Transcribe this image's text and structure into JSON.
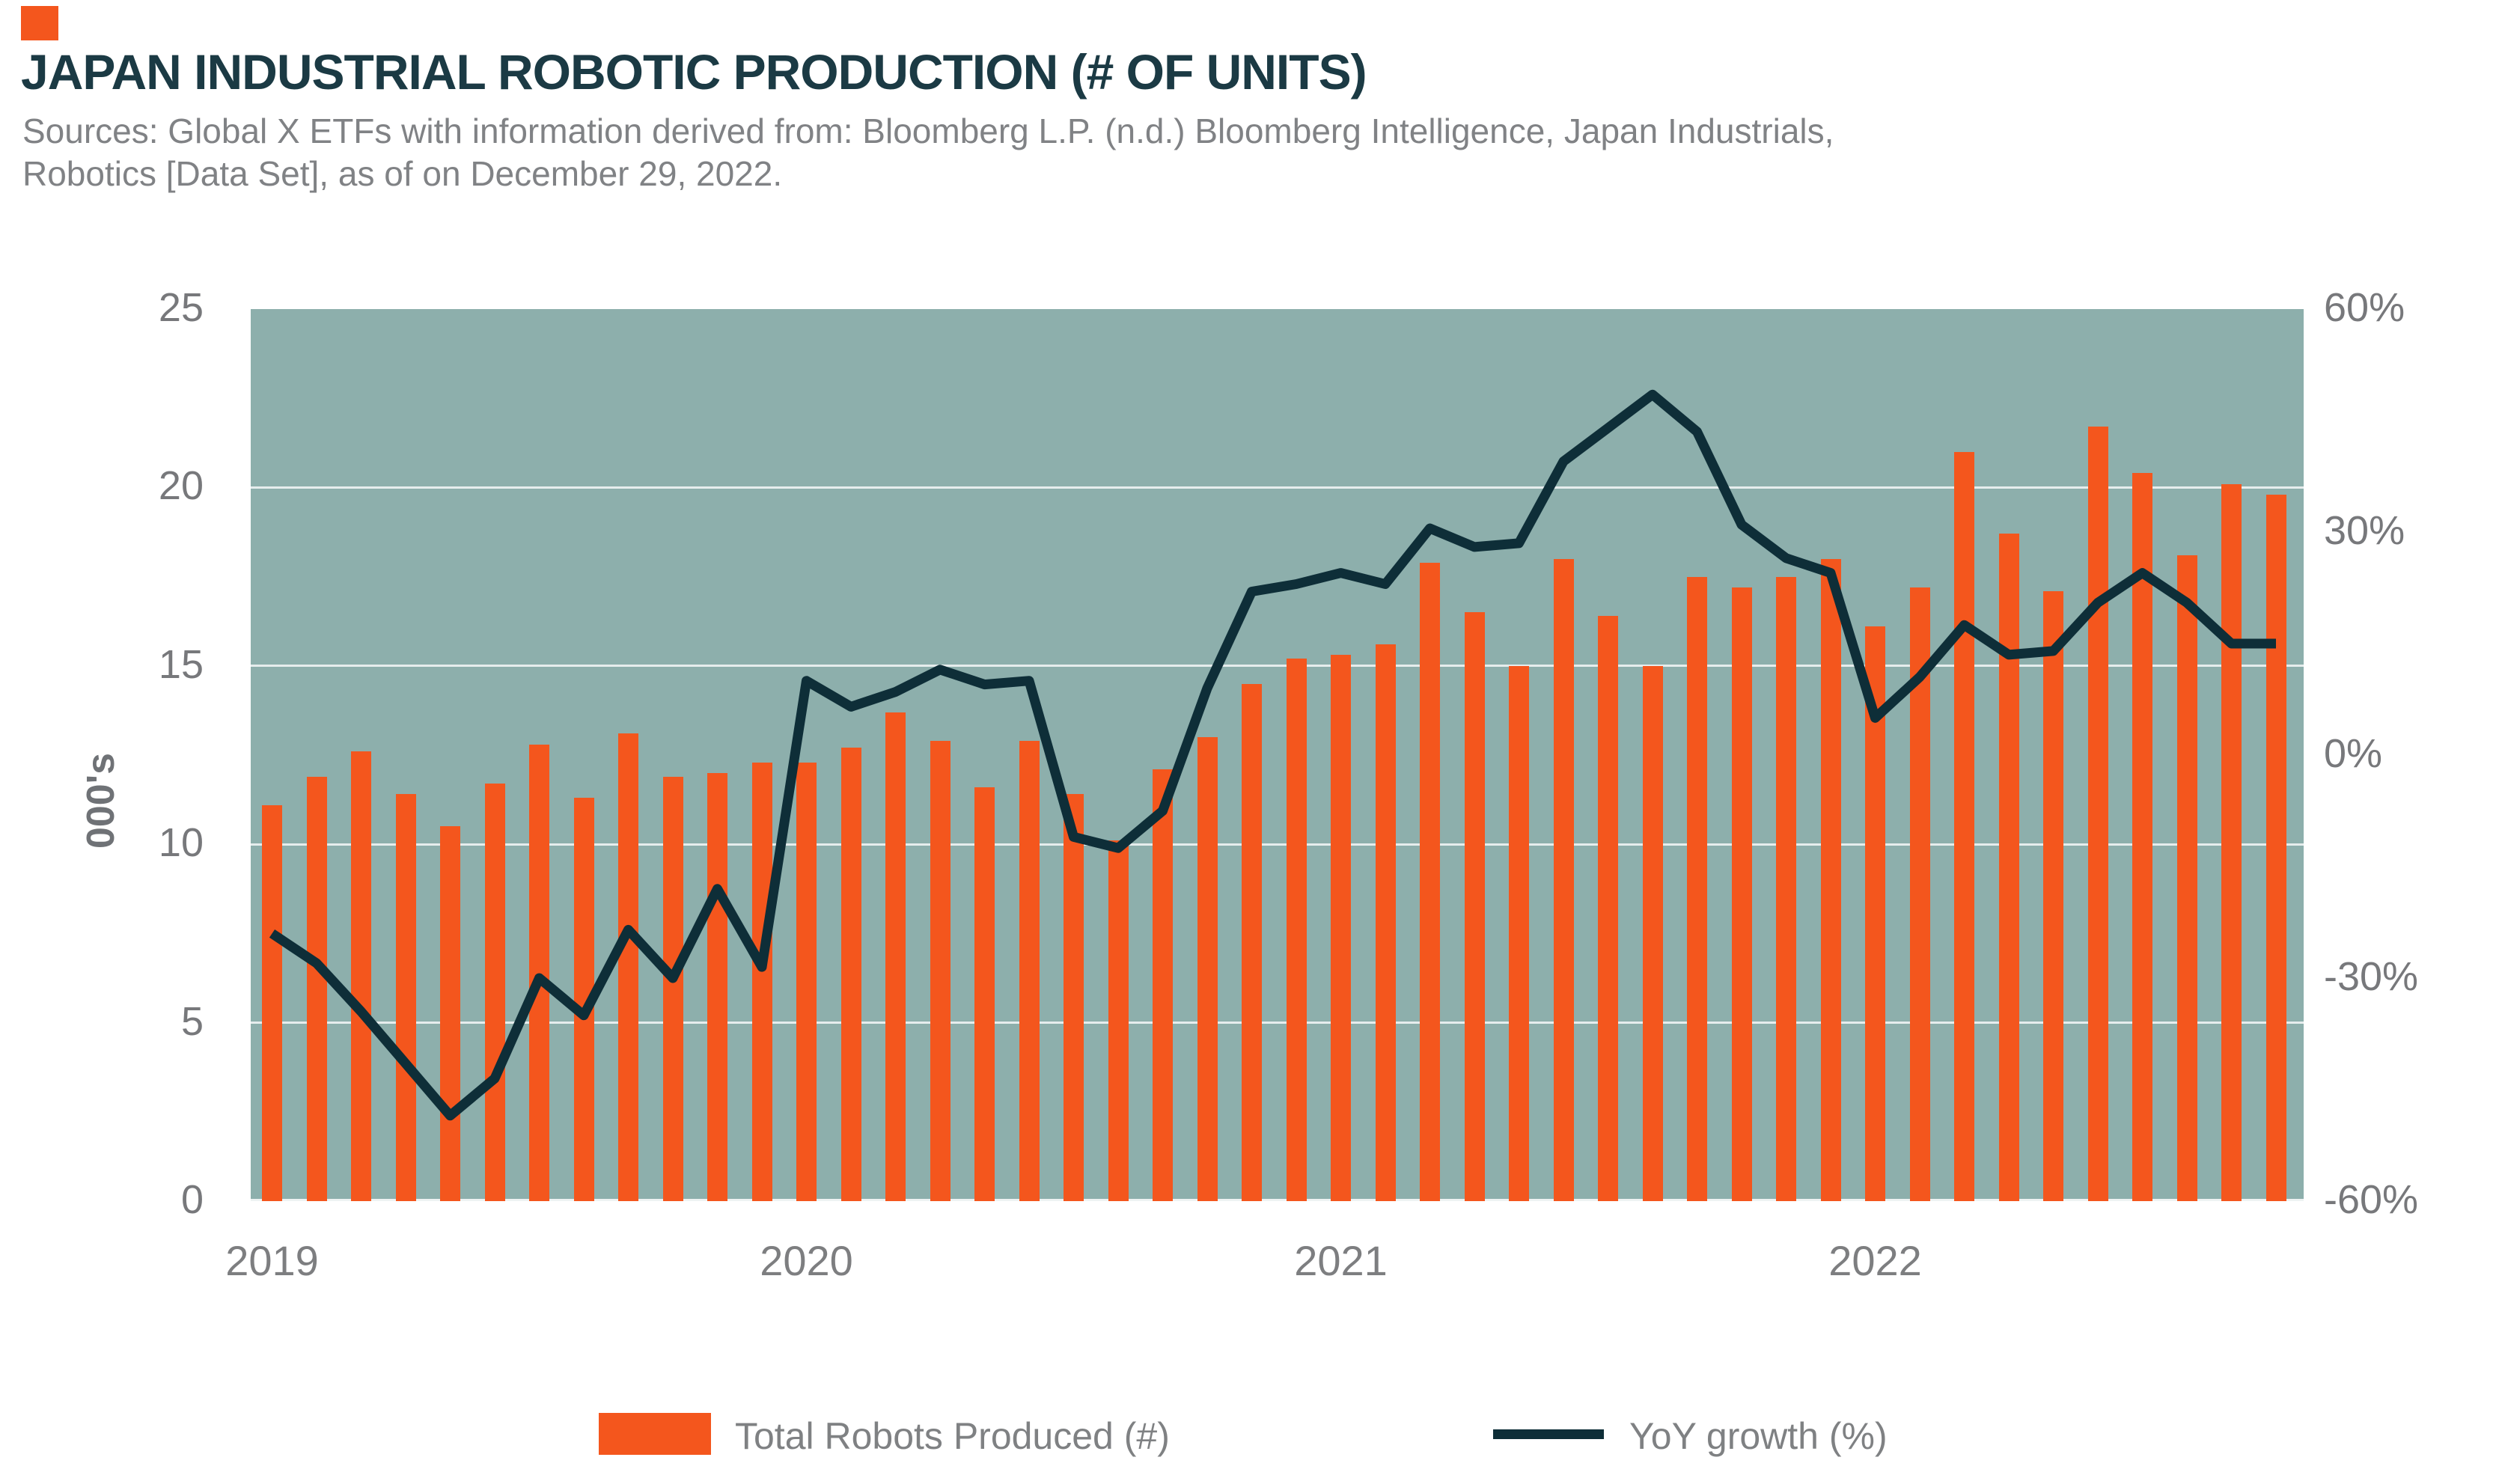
{
  "header": {
    "accent_color": "#F4561D",
    "title": "JAPAN INDUSTRIAL ROBOTIC PRODUCTION (# OF UNITS)",
    "source_line1": "Sources: Global X ETFs with information derived from: Bloomberg L.P. (n.d.) Bloomberg Intelligence, Japan Industrials,",
    "source_line2": "Robotics [Data Set], as of on December 29, 2022."
  },
  "chart_data": {
    "type": "bar",
    "subtype": "bar+line combo, dual axis",
    "title": "JAPAN INDUSTRIAL ROBOTIC PRODUCTION (# OF UNITS)",
    "plot_bg": "#8DAFAC",
    "grid": "on",
    "categories": [
      "Jan 2019",
      "Feb 2019",
      "Mar 2019",
      "Apr 2019",
      "May 2019",
      "Jun 2019",
      "Jul 2019",
      "Aug 2019",
      "Sep 2019",
      "Oct 2019",
      "Nov 2019",
      "Dec 2019",
      "Jan 2020",
      "Feb 2020",
      "Mar 2020",
      "Apr 2020",
      "May 2020",
      "Jun 2020",
      "Jul 2020",
      "Aug 2020",
      "Sep 2020",
      "Oct 2020",
      "Nov 2020",
      "Dec 2020",
      "Jan 2021",
      "Feb 2021",
      "Mar 2021",
      "Apr 2021",
      "May 2021",
      "Jun 2021",
      "Jul 2021",
      "Aug 2021",
      "Sep 2021",
      "Oct 2021",
      "Nov 2021",
      "Dec 2021",
      "Jan 2022",
      "Feb 2022",
      "Mar 2022",
      "Apr 2022",
      "May 2022",
      "Jun 2022",
      "Jul 2022",
      "Aug 2022",
      "Sep 2022",
      "Oct 2022"
    ],
    "series": [
      {
        "name": "Total Robots Produced (#)",
        "type": "bar",
        "axis": "left",
        "color": "#F4561D",
        "values": [
          11.1,
          11.9,
          12.6,
          11.4,
          10.5,
          11.7,
          12.8,
          11.3,
          13.1,
          11.9,
          12.0,
          12.3,
          12.3,
          12.7,
          13.7,
          12.9,
          11.6,
          12.9,
          11.4,
          10.1,
          12.1,
          13.0,
          14.5,
          15.2,
          15.3,
          15.6,
          17.9,
          16.5,
          15.0,
          18.0,
          16.4,
          15.0,
          17.5,
          17.2,
          17.5,
          18.0,
          16.1,
          17.2,
          21.0,
          18.7,
          17.1,
          21.7,
          20.4,
          18.1,
          20.1,
          19.8
        ]
      },
      {
        "name": "YoY growth (%)",
        "type": "line",
        "axis": "right",
        "color": "#0E2E38",
        "values": [
          -24,
          -28,
          -34.5,
          -41.5,
          -48.5,
          -43.5,
          -30,
          -35,
          -23.5,
          -30,
          -18,
          -28.5,
          10,
          6.5,
          8.5,
          11.5,
          9.5,
          10,
          -11,
          -12.5,
          -7.5,
          9,
          22,
          23,
          24.5,
          23,
          30.5,
          28,
          28.5,
          39.5,
          44,
          48.5,
          43.5,
          31,
          26.5,
          24.5,
          5,
          10.5,
          17.5,
          13.5,
          14,
          20.5,
          24.5,
          20.5,
          15,
          15
        ]
      }
    ],
    "left_axis": {
      "title": "000's",
      "min": 0,
      "max": 25,
      "ticks": [
        0,
        5,
        10,
        15,
        20,
        25
      ]
    },
    "right_axis": {
      "min": -60,
      "max": 60,
      "tick_values": [
        60,
        30,
        0,
        -30,
        -60
      ],
      "tick_labels": [
        "60%",
        "30%",
        "0%",
        "-30%",
        "-60%"
      ]
    },
    "x_axis": {
      "year_labels": [
        "2019",
        "2020",
        "2021",
        "2022"
      ],
      "year_start_indices": [
        0,
        12,
        24,
        36
      ]
    }
  },
  "legend": {
    "bar_label": "Total Robots Produced (#)",
    "line_label": "YoY growth (%)"
  }
}
